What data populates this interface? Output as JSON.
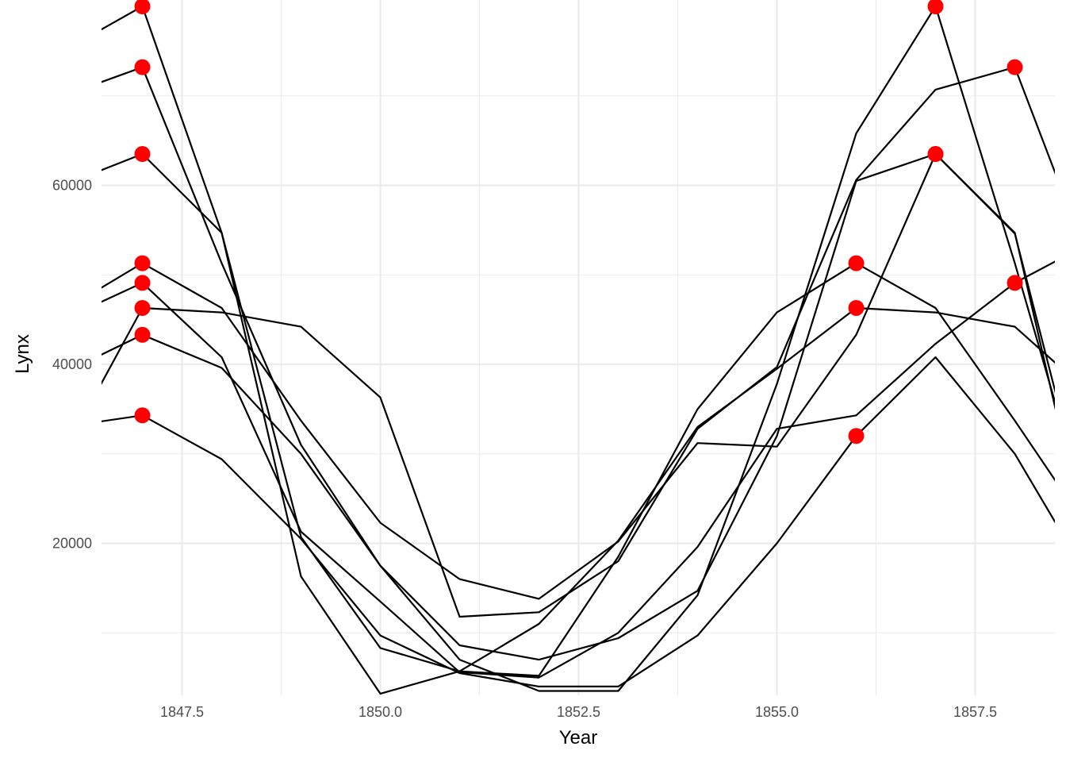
{
  "chart_data": {
    "type": "line",
    "title": "",
    "xlabel": "Year",
    "ylabel": "Lynx",
    "xlim": [
      1846.5,
      1858.5
    ],
    "ylim": [
      3000,
      80000
    ],
    "x_ticks": [
      1847.5,
      1850.0,
      1852.5,
      1855.0,
      1857.5
    ],
    "x_tick_labels": [
      "1847.5",
      "1850.0",
      "1852.5",
      "1855.0",
      "1857.5"
    ],
    "y_ticks": [
      20000,
      40000,
      60000
    ],
    "y_tick_labels": [
      "20000",
      "40000",
      "60000"
    ],
    "grid": true,
    "line_color": "#000000",
    "marker_color": "#ff0000",
    "series": [
      {
        "x": [
          1846,
          1847,
          1848,
          1849,
          1850,
          1851,
          1852,
          1853,
          1854,
          1855,
          1856,
          1857,
          1858,
          1859
        ],
        "y": [
          75000,
          80000,
          54700,
          20700,
          8300,
          5700,
          5200,
          18500,
          35000,
          45800,
          51300,
          46300,
          33700,
          20600
        ],
        "peaks": [
          1,
          10
        ]
      },
      {
        "x": [
          1846,
          1847,
          1848,
          1849,
          1850,
          1851,
          1852,
          1853,
          1854,
          1855,
          1856,
          1857,
          1858,
          1859
        ],
        "y": [
          70000,
          73200,
          51300,
          31000,
          17500,
          7000,
          3500,
          3500,
          14200,
          37800,
          65800,
          80000,
          51300,
          20700
        ],
        "peaks": [
          1,
          11
        ]
      },
      {
        "x": [
          1846,
          1847,
          1848,
          1849,
          1850,
          1851,
          1852,
          1853,
          1854,
          1855,
          1856,
          1857,
          1858,
          1859
        ],
        "y": [
          60000,
          63500,
          54700,
          16300,
          3200,
          5700,
          11000,
          20300,
          33000,
          39500,
          46300,
          45800,
          44200,
          36300
        ],
        "peaks": [
          1,
          10
        ]
      },
      {
        "x": [
          1846,
          1847,
          1848,
          1849,
          1850,
          1851,
          1852,
          1853,
          1854,
          1855,
          1856,
          1857,
          1858,
          1859
        ],
        "y": [
          46000,
          51300,
          46300,
          33700,
          22300,
          16000,
          13800,
          20200,
          31200,
          30800,
          43300,
          63500,
          54700,
          16300
        ],
        "peaks": [
          1,
          11
        ]
      },
      {
        "x": [
          1846,
          1847,
          1848,
          1849,
          1850,
          1851,
          1852,
          1853,
          1854,
          1855,
          1856,
          1857,
          1858,
          1859
        ],
        "y": [
          45000,
          49100,
          40800,
          21300,
          13500,
          5600,
          5000,
          10000,
          19600,
          32800,
          34300,
          42300,
          49100,
          53800
        ],
        "peaks": [
          1,
          12
        ]
      },
      {
        "x": [
          1846,
          1847,
          1848,
          1849,
          1850,
          1851,
          1852,
          1853,
          1854,
          1855,
          1856,
          1857,
          1858,
          1859
        ],
        "y": [
          30000,
          46300,
          45800,
          44200,
          36300,
          11800,
          12300,
          18000,
          32800,
          39700,
          60600,
          70700,
          73200,
          50000
        ],
        "peaks": [
          1,
          12
        ]
      },
      {
        "x": [
          1846,
          1847,
          1848,
          1849,
          1850,
          1851,
          1852,
          1853,
          1854,
          1855,
          1856,
          1857,
          1858,
          1859
        ],
        "y": [
          39000,
          43300,
          39600,
          30000,
          17500,
          8600,
          7000,
          9400,
          14700,
          32000,
          60500,
          63500,
          54600,
          20000
        ],
        "peaks": [
          1,
          11
        ]
      },
      {
        "x": [
          1846,
          1847,
          1848,
          1849,
          1850,
          1851,
          1852,
          1853,
          1854,
          1855,
          1856,
          1857,
          1858,
          1859
        ],
        "y": [
          33000,
          34300,
          29400,
          20500,
          9700,
          5500,
          4000,
          4000,
          9700,
          20000,
          32000,
          40800,
          30000,
          15000
        ],
        "peaks": [
          1,
          10
        ]
      }
    ]
  }
}
